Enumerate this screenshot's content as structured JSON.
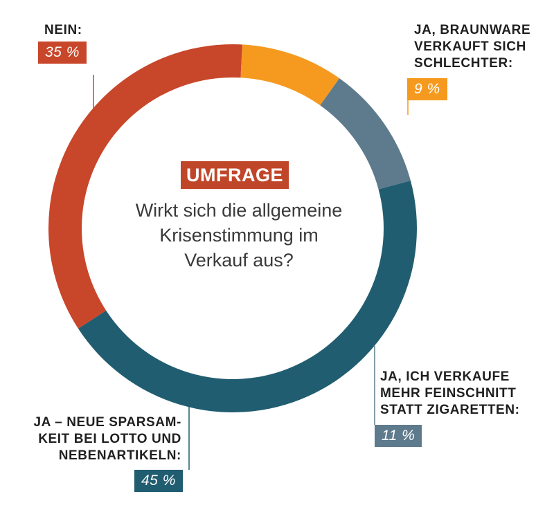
{
  "tag": "UMFRAGE",
  "question": "Wirkt sich die allgemeine\nKrisenstimmung im\nVerkauf aus?",
  "chart_data": {
    "type": "pie",
    "style": "donut",
    "start": "top",
    "slices": [
      {
        "label": "JA, BRAUNWARE\nVERKAUFT SICH\nSCHLECHTER:",
        "value": 9,
        "value_text": "9 %",
        "color": "#f59a1f"
      },
      {
        "label": "JA, ICH VERKAUFE\nMEHR FEINSCHNITT\nSTATT ZIGARETTEN:",
        "value": 11,
        "value_text": "11 %",
        "color": "#5e7a8d"
      },
      {
        "label": "JA – NEUE SPARSAM-\nKEIT BEI LOTTO UND\nNEBENARTIKELN:",
        "value": 45,
        "value_text": "45 %",
        "color": "#215d70"
      },
      {
        "label": "NEIN:",
        "value": 35,
        "value_text": "35 %",
        "color": "#c8462a"
      }
    ]
  }
}
